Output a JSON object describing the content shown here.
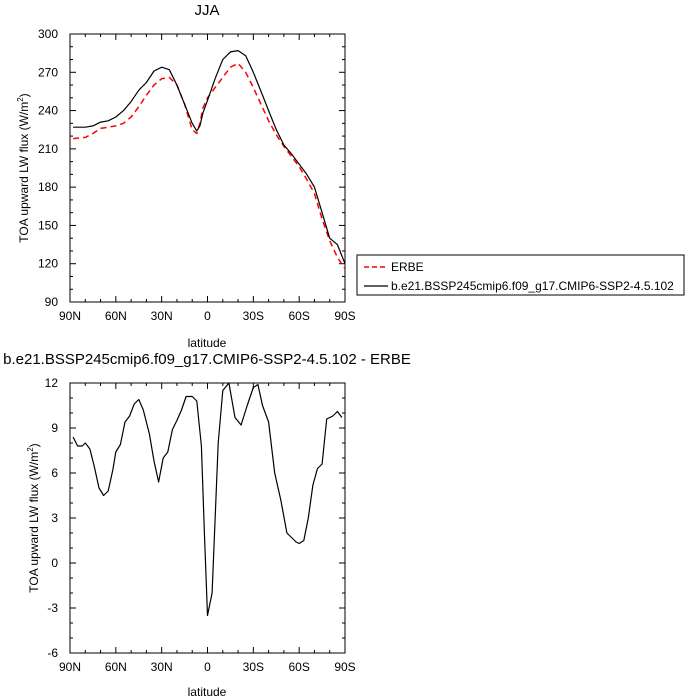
{
  "chart_data": [
    {
      "type": "line",
      "title": "JJA",
      "xlabel": "latitude",
      "ylabel": "TOA upward LW flux (W/m²)",
      "xlim": [
        90,
        -90
      ],
      "ylim": [
        90,
        300
      ],
      "x_ticks": [
        90,
        60,
        30,
        0,
        -30,
        -60,
        -90
      ],
      "x_tick_labels": [
        "90N",
        "60N",
        "30N",
        "0",
        "30S",
        "60S",
        "90S"
      ],
      "y_ticks": [
        90,
        120,
        150,
        180,
        210,
        240,
        270,
        300
      ],
      "y_tick_labels": [
        "90",
        "120",
        "150",
        "180",
        "210",
        "240",
        "270",
        "300"
      ],
      "grid": false,
      "legend_position": "right",
      "series": [
        {
          "name": "ERBE",
          "color": "#ff0000",
          "style": "dashed",
          "x": [
            88,
            80,
            75,
            70,
            65,
            60,
            55,
            50,
            45,
            40,
            35,
            30,
            25,
            20,
            15,
            10,
            7,
            5,
            3,
            0,
            -5,
            -10,
            -15,
            -20,
            -25,
            -30,
            -35,
            -40,
            -45,
            -50,
            -55,
            -60,
            -65,
            -70,
            -75,
            -80,
            -85,
            -90
          ],
          "values": [
            218,
            219,
            222,
            226,
            227,
            228,
            230,
            235,
            243,
            252,
            260,
            265,
            266,
            260,
            245,
            225,
            222,
            230,
            242,
            250,
            258,
            266,
            274,
            277,
            270,
            258,
            245,
            232,
            221,
            212,
            204,
            196,
            186,
            175,
            155,
            138,
            125,
            116
          ]
        },
        {
          "name": "b.e21.BSSP245cmip6.f09_g17.CMIP6-SSP2-4.5.102",
          "color": "#000000",
          "style": "solid",
          "x": [
            88,
            80,
            75,
            70,
            65,
            60,
            55,
            50,
            45,
            40,
            35,
            30,
            25,
            20,
            15,
            10,
            7,
            5,
            3,
            0,
            -5,
            -10,
            -15,
            -20,
            -25,
            -30,
            -35,
            -40,
            -45,
            -50,
            -55,
            -60,
            -65,
            -70,
            -75,
            -80,
            -85,
            -90
          ],
          "values": [
            227,
            227,
            228,
            231,
            232,
            235,
            240,
            247,
            256,
            262,
            271,
            274,
            272,
            260,
            245,
            230,
            224,
            228,
            238,
            248,
            265,
            280,
            286,
            287,
            283,
            270,
            255,
            240,
            225,
            213,
            206,
            198,
            190,
            180,
            160,
            140,
            135,
            120
          ]
        }
      ]
    },
    {
      "type": "line",
      "title": "b.e21.BSSP245cmip6.f09_g17.CMIP6-SSP2-4.5.102 - ERBE",
      "xlabel": "latitude",
      "ylabel": "TOA upward LW flux (W/m²)",
      "xlim": [
        90,
        -90
      ],
      "ylim": [
        -6,
        12
      ],
      "x_ticks": [
        90,
        60,
        30,
        0,
        -30,
        -60,
        -90
      ],
      "x_tick_labels": [
        "90N",
        "60N",
        "30N",
        "0",
        "30S",
        "60S",
        "90S"
      ],
      "y_ticks": [
        -6,
        -3,
        0,
        3,
        6,
        9,
        12
      ],
      "y_tick_labels": [
        "-6",
        "-3",
        "0",
        "3",
        "6",
        "9",
        "12"
      ],
      "grid": false,
      "series": [
        {
          "color": "#000000",
          "style": "solid",
          "x": [
            88,
            85,
            82,
            80,
            77,
            74,
            71,
            68,
            65,
            62,
            60,
            57,
            54,
            51,
            48,
            45,
            42,
            38,
            35,
            32,
            29,
            26,
            23,
            20,
            17,
            14,
            10,
            7,
            4,
            2,
            0,
            -3,
            -7,
            -10,
            -14,
            -18,
            -22,
            -26,
            -30,
            -33,
            -36,
            -40,
            -44,
            -48,
            -52,
            -55,
            -58,
            -60,
            -63,
            -66,
            -69,
            -72,
            -75,
            -78,
            -82,
            -85,
            -88
          ],
          "values": [
            8.4,
            7.8,
            7.8,
            8.0,
            7.6,
            6.4,
            5.0,
            4.5,
            4.8,
            6.2,
            7.4,
            7.9,
            9.4,
            9.8,
            10.6,
            10.9,
            10.2,
            8.6,
            6.8,
            5.4,
            7.0,
            7.4,
            8.9,
            9.5,
            10.2,
            11.1,
            11.1,
            10.8,
            7.8,
            2.0,
            -3.5,
            -2.0,
            8.0,
            11.5,
            12.0,
            9.7,
            9.2,
            10.5,
            11.7,
            11.9,
            10.5,
            9.4,
            6.0,
            4.2,
            2.0,
            1.7,
            1.4,
            1.3,
            1.5,
            3.0,
            5.2,
            6.3,
            6.6,
            9.6,
            9.8,
            10.1,
            9.7
          ]
        }
      ]
    }
  ]
}
